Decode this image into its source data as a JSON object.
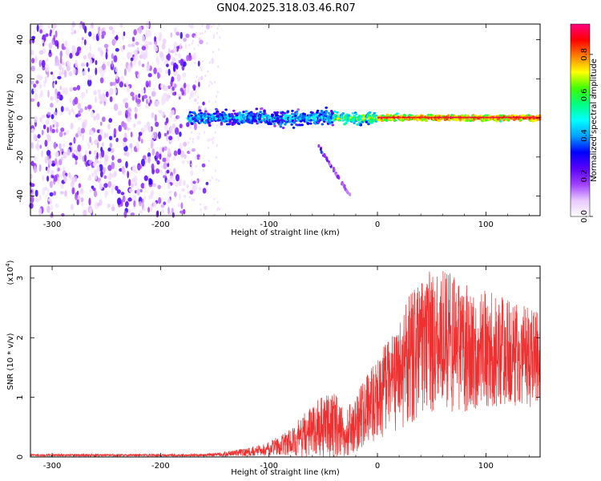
{
  "title": "GN04.2025.318.03.46.R07",
  "chart_data": [
    {
      "type": "heatmap",
      "title": "GN04.2025.318.03.46.R07",
      "xlabel": "Height of straight line (km)",
      "ylabel": "Frequency (Hz)",
      "xlim": [
        -320,
        150
      ],
      "ylim": [
        -50,
        48
      ],
      "xticks": [
        -300,
        -200,
        -100,
        0,
        100
      ],
      "xtick_labels": [
        "-300",
        "-200",
        "-100",
        "0",
        "100"
      ],
      "yticks": [
        -40,
        -20,
        0,
        20,
        40
      ],
      "ytick_labels": [
        "-40",
        "-20",
        "0",
        "20",
        "40"
      ],
      "colorbar": {
        "label": "Normalized spectral amplitude",
        "range": [
          0.0,
          0.95
        ],
        "ticks": [
          0.0,
          0.2,
          0.4,
          0.6,
          0.8
        ],
        "tick_labels": [
          "0.0",
          "0.2",
          "0.4",
          "0.6",
          "0.8"
        ],
        "colormap": [
          "#ffffff",
          "#e8c8ff",
          "#a040ff",
          "#5a00ff",
          "#0000ff",
          "#00a0ff",
          "#00ffff",
          "#00ff80",
          "#40ff00",
          "#ffff00",
          "#ff8000",
          "#ff0000",
          "#ff0080"
        ]
      },
      "features": {
        "noise_region_x": [
          -320,
          -165
        ],
        "band_x": [
          -175,
          150
        ],
        "band_center_hz": 0,
        "tail_x_range": [
          -55,
          -25
        ],
        "tail_hz_range": [
          -14,
          -40
        ]
      }
    },
    {
      "type": "line",
      "xlabel": "Height of straight line (km)",
      "ylabel": "SNR (10 * v/v)",
      "y_scale_label": "(x10",
      "y_scale_exp": "4",
      "y_scale_close": ")",
      "xlim": [
        -320,
        150
      ],
      "ylim": [
        0,
        3.2
      ],
      "xticks": [
        -300,
        -200,
        -100,
        0,
        100
      ],
      "xtick_labels": [
        "-300",
        "-200",
        "-100",
        "0",
        "100"
      ],
      "yticks": [
        0,
        1,
        2,
        3
      ],
      "ytick_labels": [
        "0",
        "1",
        "2",
        "3"
      ],
      "color": "#ee3030",
      "envelope": {
        "x": [
          -320,
          -160,
          -140,
          -120,
          -100,
          -80,
          -70,
          -60,
          -50,
          -40,
          -30,
          -20,
          -10,
          0,
          10,
          20,
          30,
          40,
          50,
          60,
          70,
          80,
          90,
          100,
          110,
          120,
          130,
          140,
          150
        ],
        "mean": [
          0.03,
          0.03,
          0.05,
          0.08,
          0.14,
          0.25,
          0.35,
          0.45,
          0.5,
          0.55,
          0.4,
          0.55,
          0.8,
          1.0,
          1.15,
          1.35,
          1.65,
          1.85,
          1.95,
          1.95,
          1.9,
          1.85,
          1.8,
          1.8,
          1.78,
          1.75,
          1.7,
          1.68,
          1.6
        ],
        "amp": [
          0.02,
          0.02,
          0.04,
          0.07,
          0.12,
          0.22,
          0.35,
          0.45,
          0.55,
          0.55,
          0.4,
          0.5,
          0.6,
          0.7,
          0.8,
          0.9,
          1.1,
          1.2,
          1.2,
          1.2,
          1.15,
          1.1,
          1.0,
          1.0,
          0.95,
          0.9,
          0.85,
          0.85,
          0.8
        ]
      }
    }
  ]
}
